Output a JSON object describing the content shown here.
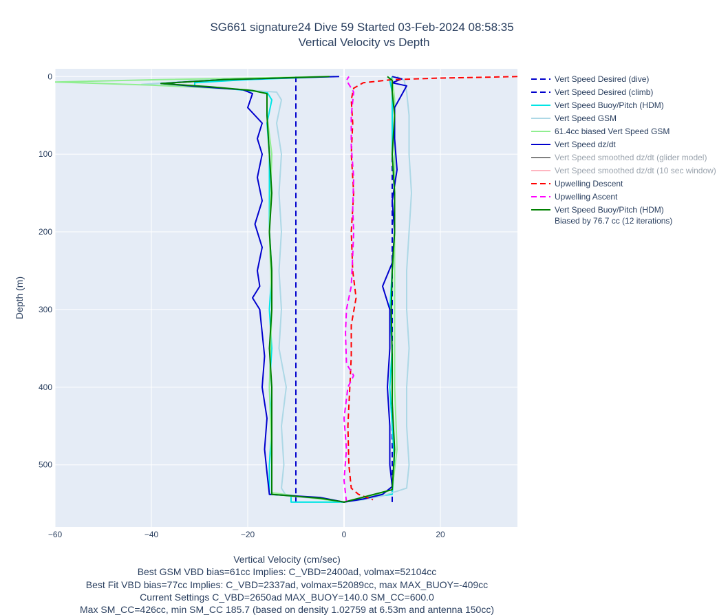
{
  "chart_data": {
    "type": "line",
    "title": "SG661 signature24 Dive 59 Started 03-Feb-2024 08:58:35",
    "subtitle": "Vertical Velocity vs Depth",
    "xlabel": "Vertical Velocity (cm/sec)",
    "ylabel": "Depth (m)",
    "xlim": [
      -60,
      36
    ],
    "ylim": [
      580,
      -10
    ],
    "y_reversed": true,
    "grid": true,
    "legend_position": "right",
    "xticks": [
      "−60",
      "−40",
      "−20",
      "0",
      "20"
    ],
    "yticks": [
      "0",
      "100",
      "200",
      "300",
      "400",
      "500"
    ],
    "footnotes": [
      "Best GSM VBD bias=61cc Implies: C_VBD=2400ad, volmax=52104cc",
      "Best Fit VBD bias=77cc Implies: C_VBD=2337ad, volmax=52089cc, max MAX_BUOY=-409cc",
      "Current Settings C_VBD=2650ad MAX_BUOY=140.0 SM_CC=600.0",
      "Max SM_CC=426cc, min SM_CC 185.7 (based on density 1.02759 at 6.53m and antenna 150cc)"
    ],
    "series": [
      {
        "name": "Vert Speed Desired (dive)",
        "color": "#0000cc",
        "dash": "dash",
        "hidden": false,
        "points": [
          [
            -10,
            0
          ],
          [
            -10,
            548
          ]
        ]
      },
      {
        "name": "Vert Speed Desired (climb)",
        "color": "#0000cc",
        "dash": "dash",
        "hidden": false,
        "points": [
          [
            10,
            548
          ],
          [
            10,
            0
          ]
        ]
      },
      {
        "name": "Vert Speed Buoy/Pitch (HDM)",
        "color": "#00e5e5",
        "dash": "solid",
        "hidden": false,
        "points": [
          [
            -2,
            0
          ],
          [
            -20,
            4
          ],
          [
            -31,
            8
          ],
          [
            -31,
            12
          ],
          [
            -20,
            18
          ],
          [
            -16,
            20
          ],
          [
            -15,
            30
          ],
          [
            -16,
            60
          ],
          [
            -15.5,
            100
          ],
          [
            -15.5,
            150
          ],
          [
            -15.5,
            200
          ],
          [
            -15,
            250
          ],
          [
            -15.5,
            300
          ],
          [
            -15,
            350
          ],
          [
            -15.5,
            400
          ],
          [
            -15,
            450
          ],
          [
            -15.5,
            500
          ],
          [
            -15.5,
            538
          ],
          [
            -11,
            540
          ],
          [
            -11,
            548
          ],
          [
            0,
            548
          ],
          [
            5,
            542
          ],
          [
            10,
            538
          ],
          [
            10.5,
            500
          ],
          [
            10,
            450
          ],
          [
            9.5,
            400
          ],
          [
            10,
            350
          ],
          [
            9.5,
            300
          ],
          [
            10,
            250
          ],
          [
            10.5,
            200
          ],
          [
            10.5,
            150
          ],
          [
            10,
            100
          ],
          [
            10,
            50
          ],
          [
            10,
            20
          ],
          [
            9.5,
            5
          ],
          [
            10,
            0
          ]
        ]
      },
      {
        "name": "Vert Speed GSM",
        "color": "#add8e6",
        "dash": "solid",
        "hidden": false,
        "points": [
          [
            -5,
            0
          ],
          [
            -30,
            5
          ],
          [
            -42,
            10
          ],
          [
            -28,
            14
          ],
          [
            -14,
            20
          ],
          [
            -13,
            30
          ],
          [
            -14,
            60
          ],
          [
            -13,
            100
          ],
          [
            -13.5,
            150
          ],
          [
            -13,
            200
          ],
          [
            -13.5,
            250
          ],
          [
            -13,
            300
          ],
          [
            -13.5,
            350
          ],
          [
            -12,
            400
          ],
          [
            -13,
            450
          ],
          [
            -12.5,
            500
          ],
          [
            -13,
            530
          ],
          [
            -12,
            540
          ],
          [
            -3,
            545
          ],
          [
            0,
            548
          ],
          [
            4,
            545
          ],
          [
            8,
            540
          ],
          [
            13,
            530
          ],
          [
            13.5,
            500
          ],
          [
            13,
            450
          ],
          [
            13,
            400
          ],
          [
            13.5,
            350
          ],
          [
            13,
            300
          ],
          [
            13,
            250
          ],
          [
            13.5,
            200
          ],
          [
            14,
            150
          ],
          [
            13.5,
            100
          ],
          [
            13.5,
            50
          ],
          [
            13,
            20
          ],
          [
            12.5,
            5
          ],
          [
            11,
            0
          ]
        ]
      },
      {
        "name": "61.4cc biased Vert Speed GSM",
        "color": "#90ee90",
        "dash": "solid",
        "hidden": false,
        "points": [
          [
            -3,
            0
          ],
          [
            -38,
            4
          ],
          [
            -60,
            7
          ],
          [
            -40,
            11
          ],
          [
            -20,
            17
          ],
          [
            -16,
            22
          ],
          [
            -16,
            50
          ],
          [
            -15,
            100
          ],
          [
            -15.5,
            200
          ],
          [
            -15,
            300
          ],
          [
            -15.5,
            400
          ],
          [
            -15,
            500
          ],
          [
            -15,
            536
          ],
          [
            -5,
            544
          ],
          [
            0,
            548
          ],
          [
            6,
            540
          ],
          [
            10,
            532
          ],
          [
            11,
            480
          ],
          [
            10.5,
            400
          ],
          [
            10.5,
            300
          ],
          [
            10.5,
            200
          ],
          [
            10.5,
            100
          ],
          [
            10.5,
            30
          ],
          [
            10,
            0
          ]
        ]
      },
      {
        "name": "Vert Speed dz/dt",
        "color": "#0000cd",
        "dash": "solid",
        "hidden": false,
        "points": [
          [
            -1,
            0
          ],
          [
            -25,
            4
          ],
          [
            -38,
            9
          ],
          [
            -30,
            13
          ],
          [
            -21,
            17
          ],
          [
            -19,
            22
          ],
          [
            -20,
            40
          ],
          [
            -17,
            60
          ],
          [
            -18,
            80
          ],
          [
            -17,
            100
          ],
          [
            -18,
            130
          ],
          [
            -17,
            160
          ],
          [
            -18.5,
            190
          ],
          [
            -17,
            220
          ],
          [
            -18,
            250
          ],
          [
            -17.5,
            270
          ],
          [
            -19,
            285
          ],
          [
            -17.5,
            300
          ],
          [
            -17,
            330
          ],
          [
            -16.5,
            360
          ],
          [
            -17,
            400
          ],
          [
            -16,
            440
          ],
          [
            -16.5,
            480
          ],
          [
            -16,
            510
          ],
          [
            -15.5,
            538
          ],
          [
            -5,
            542
          ],
          [
            0,
            548
          ],
          [
            4,
            544
          ],
          [
            8,
            538
          ],
          [
            10,
            528
          ],
          [
            9.5,
            500
          ],
          [
            9.5,
            450
          ],
          [
            9,
            400
          ],
          [
            9.5,
            350
          ],
          [
            9.5,
            300
          ],
          [
            8,
            270
          ],
          [
            10,
            240
          ],
          [
            10.5,
            200
          ],
          [
            10,
            160
          ],
          [
            11,
            120
          ],
          [
            10.5,
            80
          ],
          [
            10.5,
            40
          ],
          [
            13,
            12
          ],
          [
            10,
            8
          ],
          [
            12,
            3
          ],
          [
            10,
            0
          ]
        ]
      },
      {
        "name": "Vert Speed smoothed dz/dt (glider model)",
        "color": "#808080",
        "dash": "solid",
        "hidden": true,
        "points": []
      },
      {
        "name": "Vert Speed smoothed dz/dt (10 sec window)",
        "color": "#ffb6c1",
        "dash": "solid",
        "hidden": true,
        "points": []
      },
      {
        "name": "Upwelling Descent",
        "color": "#ff0000",
        "dash": "dash",
        "hidden": false,
        "points": [
          [
            36,
            0
          ],
          [
            20,
            2
          ],
          [
            10,
            4
          ],
          [
            4,
            8
          ],
          [
            2,
            15
          ],
          [
            1.5,
            30
          ],
          [
            1.8,
            60
          ],
          [
            1.5,
            100
          ],
          [
            2,
            150
          ],
          [
            1.5,
            200
          ],
          [
            1.8,
            250
          ],
          [
            2.5,
            285
          ],
          [
            1.5,
            320
          ],
          [
            1.5,
            360
          ],
          [
            1.2,
            400
          ],
          [
            0.8,
            450
          ],
          [
            1,
            500
          ],
          [
            1.5,
            530
          ],
          [
            3,
            538
          ],
          [
            6,
            545
          ]
        ]
      },
      {
        "name": "Upwelling Ascent",
        "color": "#ff00ff",
        "dash": "dash",
        "hidden": false,
        "points": [
          [
            0.5,
            548
          ],
          [
            0,
            520
          ],
          [
            0.5,
            480
          ],
          [
            0,
            440
          ],
          [
            0.8,
            400
          ],
          [
            2,
            385
          ],
          [
            0.5,
            370
          ],
          [
            0.3,
            330
          ],
          [
            0.5,
            300
          ],
          [
            1.5,
            270
          ],
          [
            1.8,
            230
          ],
          [
            2,
            200
          ],
          [
            1.8,
            170
          ],
          [
            2,
            130
          ],
          [
            1.5,
            90
          ],
          [
            1.5,
            50
          ],
          [
            2,
            20
          ],
          [
            0.5,
            5
          ],
          [
            1,
            0
          ]
        ]
      },
      {
        "name": "Vert Speed Buoy/Pitch (HDM) Biased by 76.7 cc (12 iterations)",
        "color": "#008000",
        "dash": "solid",
        "hidden": false,
        "points": [
          [
            -3,
            0
          ],
          [
            -25,
            4
          ],
          [
            -38,
            9
          ],
          [
            -28,
            13
          ],
          [
            -19,
            18
          ],
          [
            -16,
            22
          ],
          [
            -16,
            50
          ],
          [
            -15.5,
            100
          ],
          [
            -15,
            150
          ],
          [
            -15.5,
            200
          ],
          [
            -15,
            250
          ],
          [
            -15,
            300
          ],
          [
            -15.5,
            350
          ],
          [
            -15,
            400
          ],
          [
            -15,
            450
          ],
          [
            -15,
            500
          ],
          [
            -15,
            538
          ],
          [
            -5,
            543
          ],
          [
            0,
            548
          ],
          [
            5,
            540
          ],
          [
            10,
            532
          ],
          [
            10.5,
            480
          ],
          [
            10,
            420
          ],
          [
            10,
            360
          ],
          [
            9.8,
            300
          ],
          [
            10,
            250
          ],
          [
            10.5,
            200
          ],
          [
            10.5,
            150
          ],
          [
            10,
            100
          ],
          [
            10.5,
            50
          ],
          [
            10,
            20
          ],
          [
            10,
            5
          ],
          [
            9,
            0
          ]
        ]
      }
    ]
  },
  "legend": [
    {
      "label": "Vert Speed Desired (dive)",
      "color": "#0000cc",
      "dash": true,
      "dim": false
    },
    {
      "label": "Vert Speed Desired (climb)",
      "color": "#0000cc",
      "dash": true,
      "dim": false
    },
    {
      "label": "Vert Speed Buoy/Pitch (HDM)",
      "color": "#00e5e5",
      "dash": false,
      "dim": false
    },
    {
      "label": "Vert Speed GSM",
      "color": "#add8e6",
      "dash": false,
      "dim": false
    },
    {
      "label": "61.4cc biased Vert Speed GSM",
      "color": "#90ee90",
      "dash": false,
      "dim": false
    },
    {
      "label": "Vert Speed dz/dt",
      "color": "#0000cd",
      "dash": false,
      "dim": false
    },
    {
      "label": "Vert Speed smoothed dz/dt (glider model)",
      "color": "#808080",
      "dash": false,
      "dim": true
    },
    {
      "label": "Vert Speed smoothed dz/dt (10 sec window)",
      "color": "#ffb6c1",
      "dash": false,
      "dim": true
    },
    {
      "label": "Upwelling Descent",
      "color": "#ff0000",
      "dash": true,
      "dim": false
    },
    {
      "label": "Upwelling Ascent",
      "color": "#ff00ff",
      "dash": true,
      "dim": false
    },
    {
      "label": "Vert Speed Buoy/Pitch (HDM)",
      "label2": "Biased by 76.7 cc (12 iterations)",
      "color": "#008000",
      "dash": false,
      "dim": false
    }
  ]
}
